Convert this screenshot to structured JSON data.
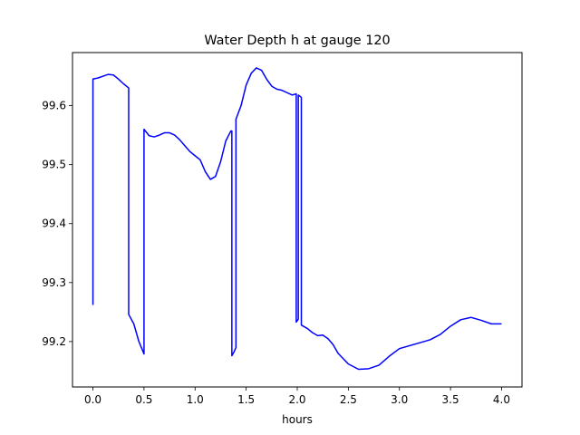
{
  "chart_data": {
    "type": "line",
    "title": "Water Depth h at gauge 120",
    "xlabel": "hours",
    "ylabel": "",
    "xlim": [
      -0.2,
      4.2
    ],
    "ylim": [
      99.123,
      99.69
    ],
    "xticks": [
      0.0,
      0.5,
      1.0,
      1.5,
      2.0,
      2.5,
      3.0,
      3.5,
      4.0
    ],
    "xtick_labels": [
      "0.0",
      "0.5",
      "1.0",
      "1.5",
      "2.0",
      "2.5",
      "3.0",
      "3.5",
      "4.0"
    ],
    "yticks": [
      99.2,
      99.3,
      99.4,
      99.5,
      99.6
    ],
    "ytick_labels": [
      "99.2",
      "99.3",
      "99.4",
      "99.5",
      "99.6"
    ],
    "grid": false,
    "series": [
      {
        "color": "#0000ff",
        "x": [
          0.0,
          0.0,
          0.05,
          0.1,
          0.15,
          0.2,
          0.25,
          0.3,
          0.35,
          0.35,
          0.4,
          0.45,
          0.5,
          0.5,
          0.55,
          0.6,
          0.65,
          0.7,
          0.75,
          0.8,
          0.85,
          0.9,
          0.95,
          1.0,
          1.05,
          1.1,
          1.15,
          1.2,
          1.25,
          1.3,
          1.35,
          1.36,
          1.36,
          1.38,
          1.4,
          1.4,
          1.45,
          1.5,
          1.55,
          1.6,
          1.65,
          1.7,
          1.75,
          1.8,
          1.85,
          1.9,
          1.95,
          1.99,
          1.99,
          2.01,
          2.01,
          2.04,
          2.04,
          2.1,
          2.15,
          2.2,
          2.25,
          2.3,
          2.35,
          2.4,
          2.5,
          2.6,
          2.7,
          2.8,
          2.9,
          3.0,
          3.1,
          3.2,
          3.3,
          3.4,
          3.5,
          3.6,
          3.7,
          3.8,
          3.9,
          4.0
        ],
        "y": [
          99.262,
          99.645,
          99.647,
          99.65,
          99.653,
          99.652,
          99.645,
          99.637,
          99.63,
          99.246,
          99.23,
          99.2,
          99.179,
          99.56,
          99.549,
          99.547,
          99.55,
          99.554,
          99.554,
          99.55,
          99.542,
          99.532,
          99.522,
          99.515,
          99.508,
          99.488,
          99.475,
          99.48,
          99.505,
          99.54,
          99.557,
          99.557,
          99.176,
          99.182,
          99.19,
          99.577,
          99.6,
          99.635,
          99.655,
          99.664,
          99.66,
          99.645,
          99.633,
          99.628,
          99.626,
          99.622,
          99.618,
          99.62,
          99.233,
          99.238,
          99.618,
          99.614,
          99.228,
          99.222,
          99.215,
          99.21,
          99.211,
          99.205,
          99.195,
          99.18,
          99.162,
          99.153,
          99.154,
          99.16,
          99.175,
          99.188,
          99.193,
          99.198,
          99.203,
          99.212,
          99.226,
          99.237,
          99.241,
          99.236,
          99.23,
          99.23
        ]
      }
    ]
  }
}
